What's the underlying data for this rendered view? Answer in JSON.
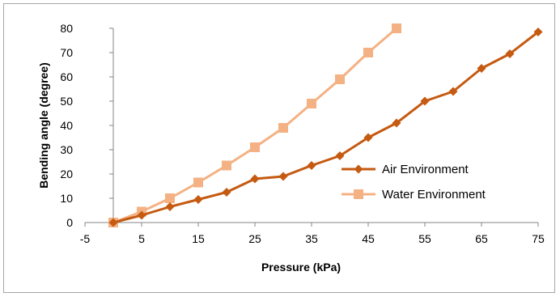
{
  "chart_data": {
    "type": "line",
    "xlabel": "Pressure (kPa)",
    "ylabel": "Bending angle (degree)",
    "xlim": [
      -5,
      75
    ],
    "ylim": [
      0,
      80
    ],
    "xticks": [
      "-5",
      "5",
      "15",
      "25",
      "35",
      "45",
      "55",
      "65",
      "75"
    ],
    "yticks": [
      "0",
      "10",
      "20",
      "30",
      "40",
      "50",
      "60",
      "70",
      "80"
    ],
    "grid": false,
    "legend_position": "right-center",
    "series": [
      {
        "name": "Air Environment",
        "color": "#c55a11",
        "marker": "diamond",
        "x": [
          0,
          5,
          10,
          15,
          20,
          25,
          30,
          35,
          40,
          45,
          50,
          55,
          60,
          65,
          70,
          75
        ],
        "y": [
          0,
          3,
          6.5,
          9.5,
          12.5,
          18,
          19,
          23.5,
          27.5,
          35,
          41,
          50,
          54,
          63.5,
          69.5,
          78.5
        ]
      },
      {
        "name": "Water Environment",
        "color": "#f4b183",
        "marker": "square",
        "x": [
          0,
          5,
          10,
          15,
          20,
          25,
          30,
          35,
          40,
          45,
          50
        ],
        "y": [
          0,
          4.5,
          10,
          16.5,
          23.5,
          31,
          39,
          49,
          59,
          70,
          80
        ]
      }
    ]
  }
}
